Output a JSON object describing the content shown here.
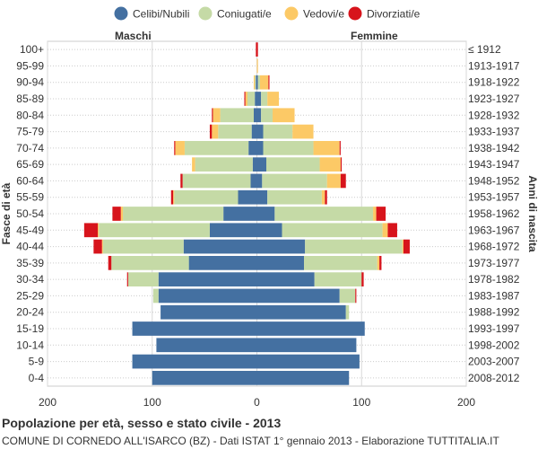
{
  "chart_data": {
    "type": "bar",
    "orientation": "horizontal-pyramid",
    "title": "Popolazione per età, sesso e stato civile - 2013",
    "subtitle": "COMUNE DI CORNEDO ALL'ISARCO (BZ) - Dati ISTAT 1° gennaio 2013 - Elaborazione TUTTITALIA.IT",
    "left_header": "Maschi",
    "right_header": "Femmine",
    "ylabel_left": "Fasce di età",
    "ylabel_right": "Anni di nascita",
    "xlim": [
      -200,
      200
    ],
    "xticks": [
      -200,
      -100,
      0,
      100,
      200
    ],
    "xtick_labels": [
      "200",
      "100",
      "0",
      "100",
      "200"
    ],
    "grid": true,
    "legend_position": "top",
    "legend": [
      {
        "name": "Celibi/Nubili",
        "color": "#4470a1"
      },
      {
        "name": "Coniugati/e",
        "color": "#c5daa6"
      },
      {
        "name": "Vedovi/e",
        "color": "#fcc966"
      },
      {
        "name": "Divorziati/e",
        "color": "#d7141c"
      }
    ],
    "age_groups": [
      "100+",
      "95-99",
      "90-94",
      "85-89",
      "80-84",
      "75-79",
      "70-74",
      "65-69",
      "60-64",
      "55-59",
      "50-54",
      "45-49",
      "40-44",
      "35-39",
      "30-34",
      "25-29",
      "20-24",
      "15-19",
      "10-14",
      "5-9",
      "0-4"
    ],
    "birth_years": [
      "≤ 1912",
      "1913-1917",
      "1918-1922",
      "1923-1927",
      "1928-1932",
      "1933-1937",
      "1938-1942",
      "1943-1947",
      "1948-1952",
      "1953-1957",
      "1958-1962",
      "1963-1967",
      "1968-1972",
      "1973-1977",
      "1978-1982",
      "1983-1987",
      "1988-1992",
      "1993-1997",
      "1998-2002",
      "2003-2007",
      "2008-2012"
    ],
    "males": [
      {
        "celibi": 0,
        "coniugati": 0,
        "vedovi": 0,
        "divorziati": 1
      },
      {
        "celibi": 0,
        "coniugati": 0,
        "vedovi": 0,
        "divorziati": 0
      },
      {
        "celibi": 1,
        "coniugati": 1,
        "vedovi": 1,
        "divorziati": 0
      },
      {
        "celibi": 2,
        "coniugati": 7,
        "vedovi": 2,
        "divorziati": 1
      },
      {
        "celibi": 3,
        "coniugati": 32,
        "vedovi": 7,
        "divorziati": 1
      },
      {
        "celibi": 5,
        "coniugati": 32,
        "vedovi": 6,
        "divorziati": 2
      },
      {
        "celibi": 8,
        "coniugati": 61,
        "vedovi": 9,
        "divorziati": 1
      },
      {
        "celibi": 4,
        "coniugati": 55,
        "vedovi": 3,
        "divorziati": 0
      },
      {
        "celibi": 6,
        "coniugati": 65,
        "vedovi": 0,
        "divorziati": 2
      },
      {
        "celibi": 18,
        "coniugati": 61,
        "vedovi": 1,
        "divorziati": 2
      },
      {
        "celibi": 32,
        "coniugati": 96,
        "vedovi": 2,
        "divorziati": 8
      },
      {
        "celibi": 45,
        "coniugati": 106,
        "vedovi": 1,
        "divorziati": 13
      },
      {
        "celibi": 70,
        "coniugati": 77,
        "vedovi": 1,
        "divorziati": 8
      },
      {
        "celibi": 65,
        "coniugati": 74,
        "vedovi": 0,
        "divorziati": 3
      },
      {
        "celibi": 94,
        "coniugati": 29,
        "vedovi": 0,
        "divorziati": 1
      },
      {
        "celibi": 94,
        "coniugati": 5,
        "vedovi": 0,
        "divorziati": 0
      },
      {
        "celibi": 92,
        "coniugati": 0,
        "vedovi": 0,
        "divorziati": 0
      },
      {
        "celibi": 119,
        "coniugati": 0,
        "vedovi": 0,
        "divorziati": 0
      },
      {
        "celibi": 96,
        "coniugati": 0,
        "vedovi": 0,
        "divorziati": 0
      },
      {
        "celibi": 119,
        "coniugati": 0,
        "vedovi": 0,
        "divorziati": 0
      },
      {
        "celibi": 100,
        "coniugati": 0,
        "vedovi": 0,
        "divorziati": 0
      }
    ],
    "females": [
      {
        "nubili": 0,
        "coniugate": 0,
        "vedove": 0,
        "divorziate": 1
      },
      {
        "nubili": 0,
        "coniugate": 0,
        "vedove": 1,
        "divorziate": 0
      },
      {
        "nubili": 1,
        "coniugate": 2,
        "vedove": 8,
        "divorziate": 1
      },
      {
        "nubili": 4,
        "coniugate": 6,
        "vedove": 11,
        "divorziate": 0
      },
      {
        "nubili": 4,
        "coniugate": 11,
        "vedove": 21,
        "divorziate": 0
      },
      {
        "nubili": 6,
        "coniugate": 28,
        "vedove": 20,
        "divorziate": 0
      },
      {
        "nubili": 6,
        "coniugate": 48,
        "vedove": 25,
        "divorziate": 1
      },
      {
        "nubili": 9,
        "coniugate": 51,
        "vedove": 20,
        "divorziate": 1
      },
      {
        "nubili": 5,
        "coniugate": 62,
        "vedove": 13,
        "divorziate": 5
      },
      {
        "nubili": 10,
        "coniugate": 52,
        "vedove": 3,
        "divorziate": 2
      },
      {
        "nubili": 17,
        "coniugate": 94,
        "vedove": 3,
        "divorziate": 9
      },
      {
        "nubili": 24,
        "coniugate": 96,
        "vedove": 5,
        "divorziate": 9
      },
      {
        "nubili": 46,
        "coniugate": 93,
        "vedove": 1,
        "divorziate": 6
      },
      {
        "nubili": 45,
        "coniugate": 70,
        "vedove": 2,
        "divorziate": 2
      },
      {
        "nubili": 55,
        "coniugate": 45,
        "vedove": 0,
        "divorziate": 2
      },
      {
        "nubili": 79,
        "coniugate": 15,
        "vedove": 0,
        "divorziate": 1
      },
      {
        "nubili": 85,
        "coniugate": 3,
        "vedove": 0,
        "divorziate": 0
      },
      {
        "nubili": 103,
        "coniugate": 0,
        "vedove": 0,
        "divorziate": 0
      },
      {
        "nubili": 95,
        "coniugate": 0,
        "vedove": 0,
        "divorziate": 0
      },
      {
        "nubili": 98,
        "coniugate": 0,
        "vedove": 0,
        "divorziate": 0
      },
      {
        "nubili": 88,
        "coniugate": 0,
        "vedove": 0,
        "divorziate": 0
      }
    ]
  }
}
